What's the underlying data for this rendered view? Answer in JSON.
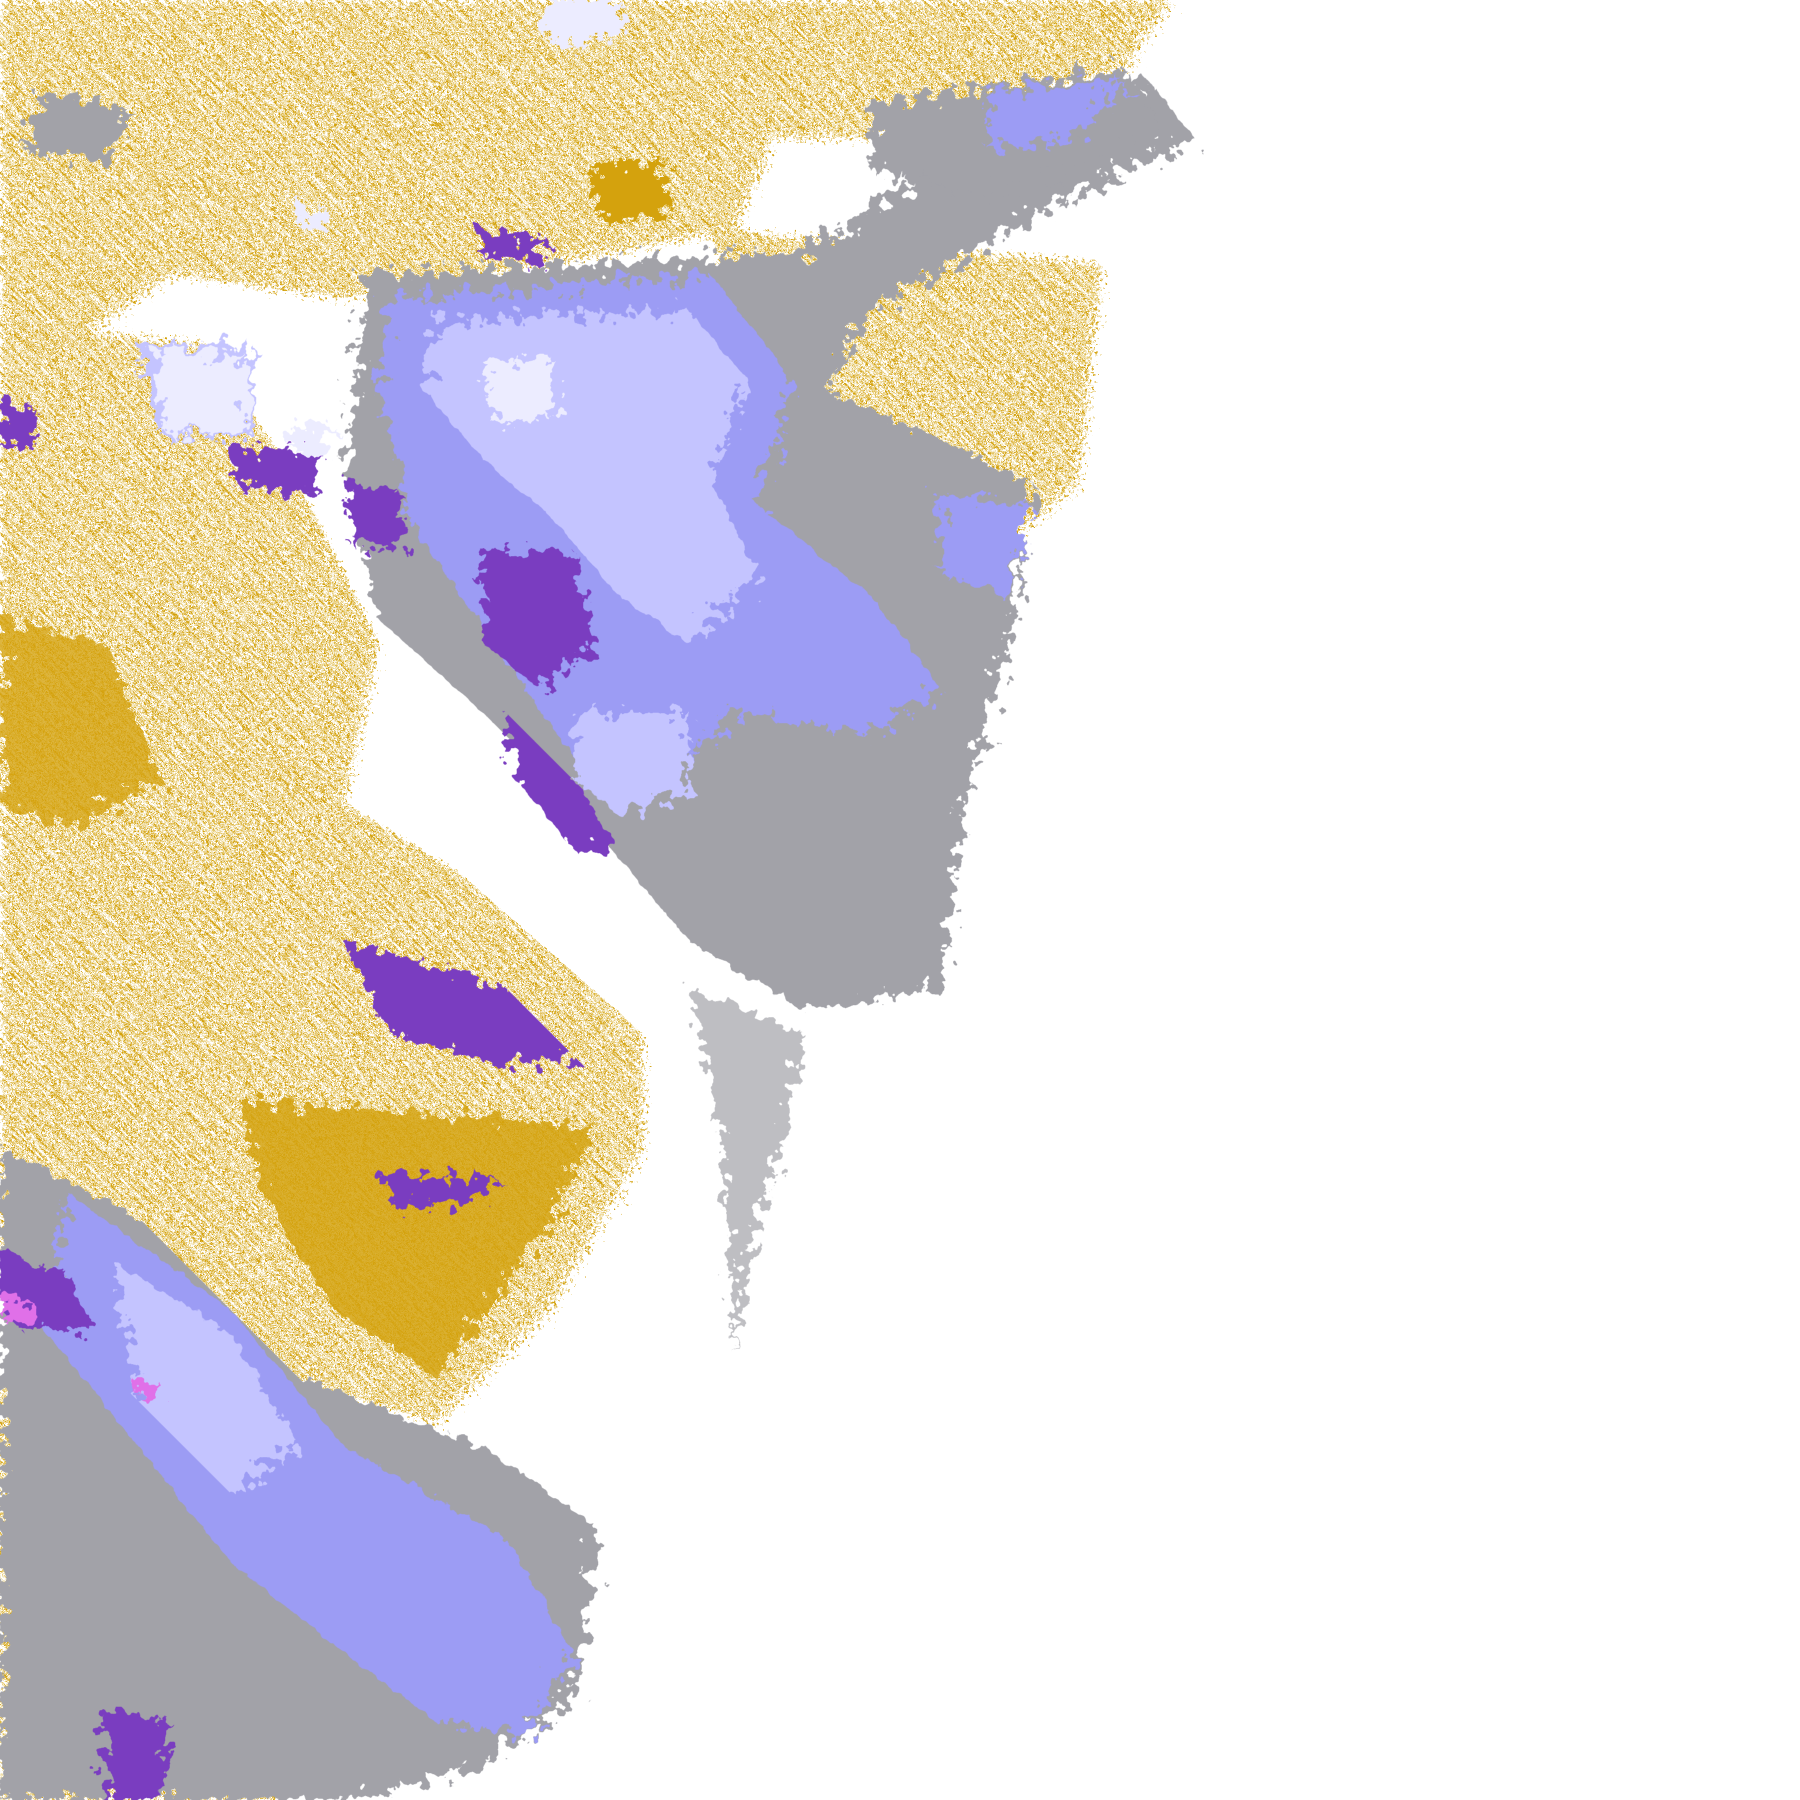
{
  "map": {
    "kind": "classified raster overlay tile",
    "background_color": "#ffffff",
    "palette": {
      "gold": "#d4a20a",
      "purple": "#7a3cc0",
      "gray": "#a2a2a8",
      "periwinkle": "#9c9cf4",
      "lavender": "#c4c4ff",
      "pale": "#ececff",
      "pink": "#e070e8"
    }
  }
}
